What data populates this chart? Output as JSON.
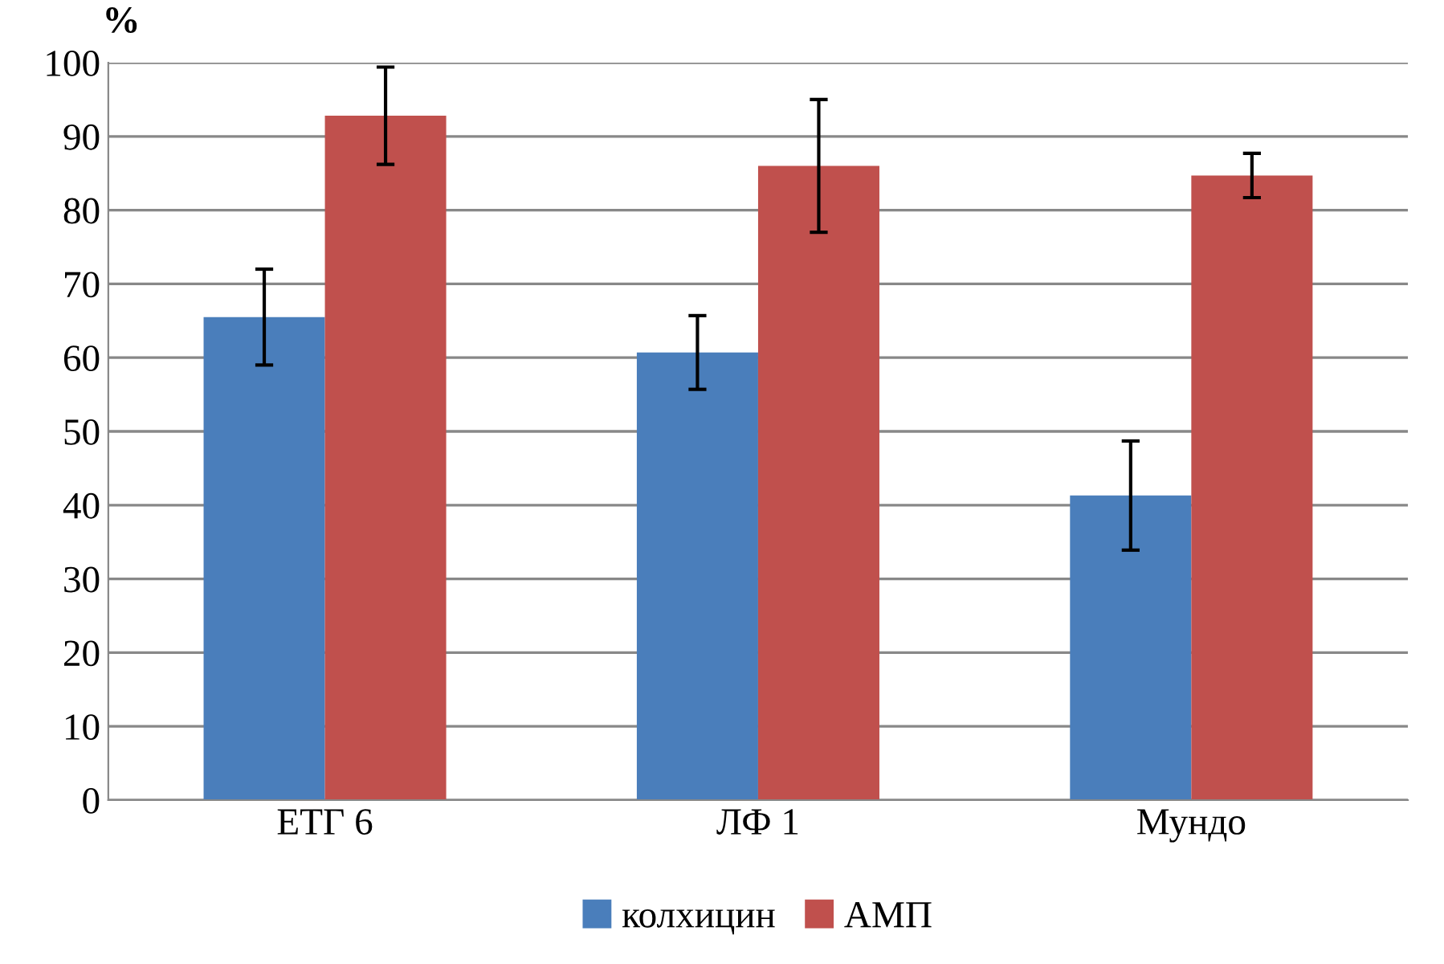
{
  "chart_data": {
    "type": "bar",
    "ylabel": "%",
    "categories": [
      "ЕТГ 6",
      "ЛФ 1",
      "Мундо"
    ],
    "series": [
      {
        "name": "колхицин",
        "color": "#4a7ebb",
        "values": [
          65.5,
          60.7,
          41.3
        ],
        "errors": [
          6.5,
          5,
          7.4
        ]
      },
      {
        "name": "АМП",
        "color": "#c0504d",
        "values": [
          92.8,
          86,
          84.7
        ],
        "errors": [
          6.6,
          9,
          3
        ]
      }
    ],
    "ylim": [
      0,
      100
    ],
    "yticks": [
      0,
      10,
      20,
      30,
      40,
      50,
      60,
      70,
      80,
      90,
      100
    ],
    "grid": "y",
    "legend": "bottom"
  }
}
